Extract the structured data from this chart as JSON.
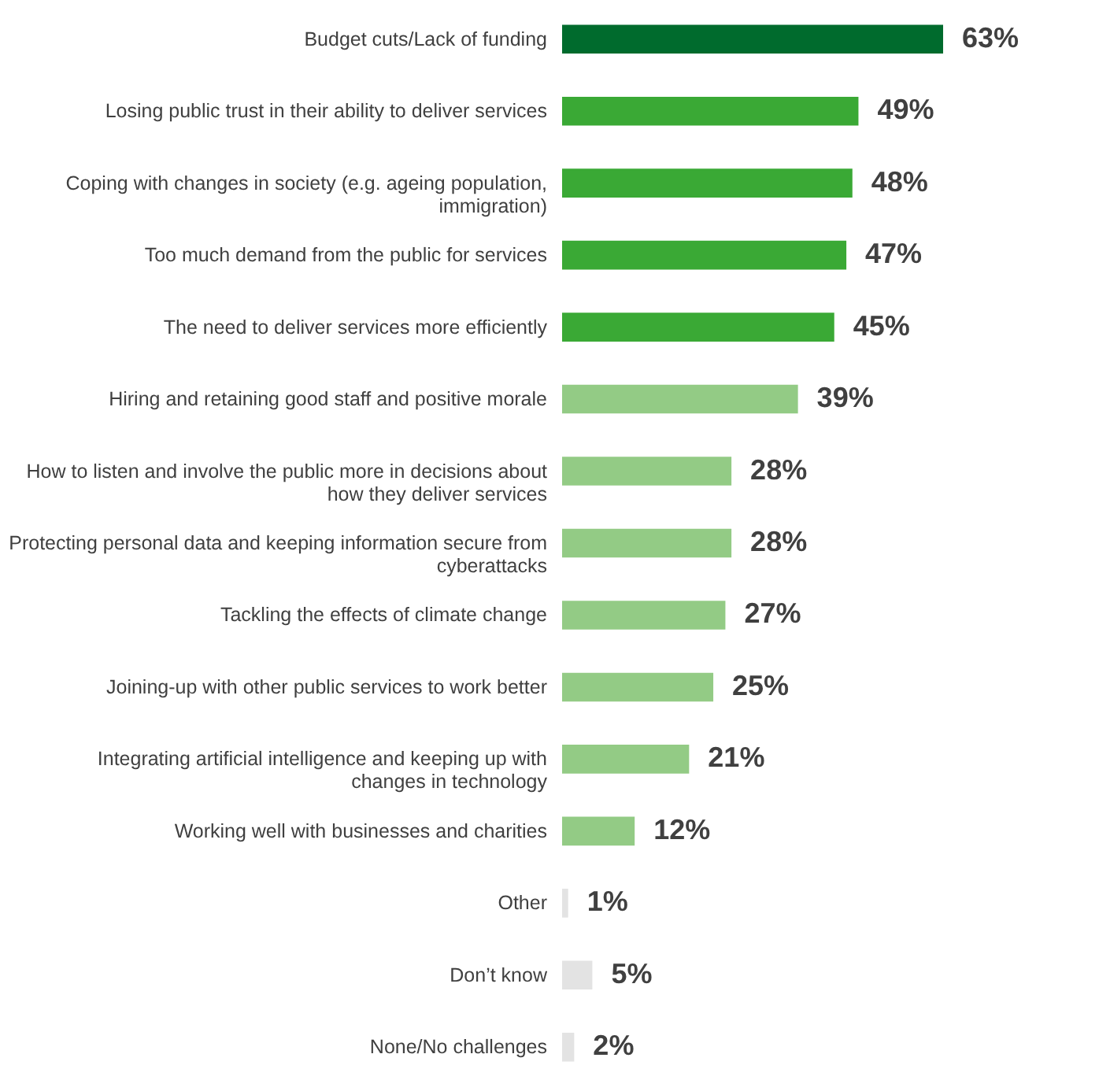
{
  "chart_data": {
    "type": "bar",
    "orientation": "horizontal",
    "categories": [
      "Budget cuts/Lack of funding",
      "Losing public trust in their ability to deliver services",
      "Coping with changes in society (e.g. ageing population, immigration)",
      "Too much demand from the public for services",
      "The need to deliver services more efficiently",
      "Hiring and retaining good staff and positive morale",
      "How to listen and involve the public more in decisions about how they deliver services",
      "Protecting personal data and keeping information secure from cyberattacks",
      "Tackling the effects of climate change",
      "Joining-up with other public services to work better",
      "Integrating artificial intelligence and keeping up with changes in technology",
      "Working well with businesses and charities",
      "Other",
      "Don’t know",
      "None/No challenges"
    ],
    "values": [
      63,
      49,
      48,
      47,
      45,
      39,
      28,
      28,
      27,
      25,
      21,
      12,
      1,
      5,
      2
    ],
    "colors": [
      "#006b2d",
      "#3aa935",
      "#3aa935",
      "#3aa935",
      "#3aa935",
      "#93cb85",
      "#93cb85",
      "#93cb85",
      "#93cb85",
      "#93cb85",
      "#93cb85",
      "#93cb85",
      "#e3e3e3",
      "#e3e3e3",
      "#e3e3e3"
    ],
    "value_labels": [
      "63%",
      "49%",
      "48%",
      "47%",
      "45%",
      "39%",
      "28%",
      "28%",
      "27%",
      "25%",
      "21%",
      "12%",
      "1%",
      "5%",
      "2%"
    ],
    "grid": false
  }
}
